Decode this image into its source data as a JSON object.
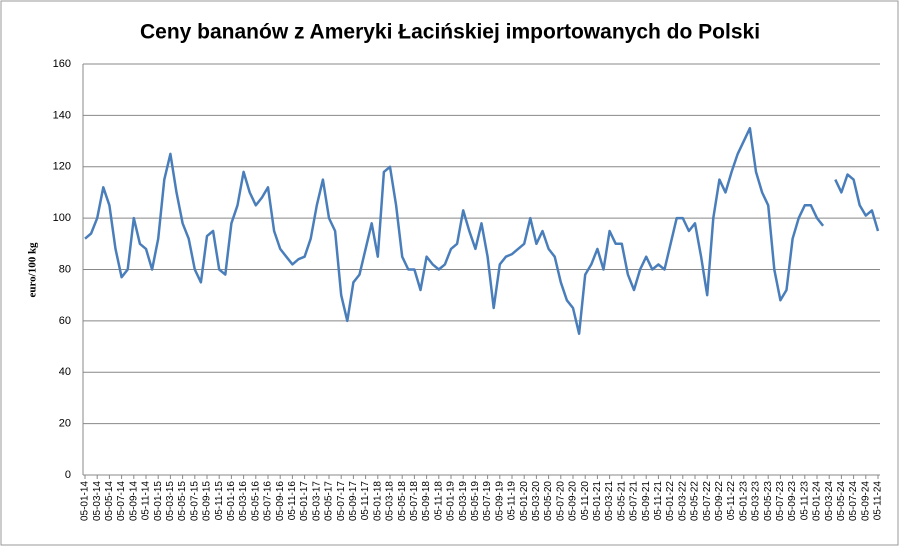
{
  "chart_data": {
    "type": "line",
    "title": "Ceny bananów z Ameryki Łacińskiej importowanych do Polski",
    "y_label": "euro/100 kg",
    "categories": [
      "05-01-14",
      null,
      "05-03-14",
      null,
      "05-05-14",
      null,
      "05-07-14",
      null,
      "05-09-14",
      null,
      "05-11-14",
      null,
      "05-01-15",
      null,
      "05-03-15",
      null,
      "05-05-15",
      null,
      "05-07-15",
      null,
      "05-09-15",
      null,
      "05-11-15",
      null,
      "05-01-16",
      null,
      "05-03-16",
      null,
      "05-05-16",
      null,
      "05-07-16",
      null,
      "05-09-16",
      null,
      "05-11-16",
      null,
      "05-01-17",
      null,
      "05-03-17",
      null,
      "05-05-17",
      null,
      "05-07-17",
      null,
      "05-09-17",
      null,
      "05-11-17",
      null,
      "05-01-18",
      null,
      "05-03-18",
      null,
      "05-05-18",
      null,
      "05-07-18",
      null,
      "05-09-18",
      null,
      "05-11-18",
      null,
      "05-01-19",
      null,
      "05-03-19",
      null,
      "05-05-19",
      null,
      "05-07-19",
      null,
      "05-09-19",
      null,
      "05-11-19",
      null,
      "05-01-20",
      null,
      "05-03-20",
      null,
      "05-05-20",
      null,
      "05-07-20",
      null,
      "05-09-20",
      null,
      "05-11-20",
      null,
      "05-01-21",
      null,
      "05-03-21",
      null,
      "05-05-21",
      null,
      "05-07-21",
      null,
      "05-09-21",
      null,
      "05-11-21",
      null,
      "05-01-22",
      null,
      "05-03-22",
      null,
      "05-05-22",
      null,
      "05-07-22",
      null,
      "05-09-22",
      null,
      "05-11-22",
      null,
      "05-01-23",
      null,
      "05-03-23",
      null,
      "05-05-23",
      null,
      "05-07-23",
      null,
      "05-09-23",
      null,
      "05-11-23",
      null,
      "05-01-24",
      null,
      "05-03-24",
      null,
      "05-05-24",
      null,
      "05-07-24",
      null,
      "05-09-24",
      null,
      "05-11-24"
    ],
    "series": [
      {
        "name": "euro/100 kg",
        "color": "#4a7ebb",
        "values": [
          92,
          94,
          100,
          112,
          105,
          88,
          77,
          80,
          100,
          90,
          88,
          80,
          92,
          115,
          125,
          110,
          98,
          92,
          80,
          75,
          93,
          95,
          80,
          78,
          98,
          105,
          118,
          110,
          105,
          108,
          112,
          95,
          88,
          85,
          82,
          84,
          85,
          92,
          105,
          115,
          100,
          95,
          70,
          60,
          75,
          78,
          88,
          98,
          85,
          118,
          120,
          105,
          85,
          80,
          80,
          72,
          85,
          82,
          80,
          82,
          88,
          90,
          103,
          95,
          88,
          98,
          85,
          65,
          82,
          85,
          86,
          88,
          90,
          100,
          90,
          95,
          88,
          85,
          75,
          68,
          65,
          55,
          78,
          82,
          88,
          80,
          95,
          90,
          90,
          78,
          72,
          80,
          85,
          80,
          82,
          80,
          90,
          100,
          100,
          95,
          98,
          85,
          70,
          100,
          115,
          110,
          118,
          125,
          130,
          135,
          118,
          110,
          105,
          80,
          68,
          72,
          92,
          100,
          105,
          105,
          100,
          97,
          null,
          115,
          110,
          117,
          115,
          105,
          101,
          103,
          95
        ]
      }
    ],
    "ylim": [
      0,
      160
    ],
    "yticks": [
      0,
      20,
      40,
      60,
      80,
      100,
      120,
      140,
      160
    ],
    "grid": true
  }
}
